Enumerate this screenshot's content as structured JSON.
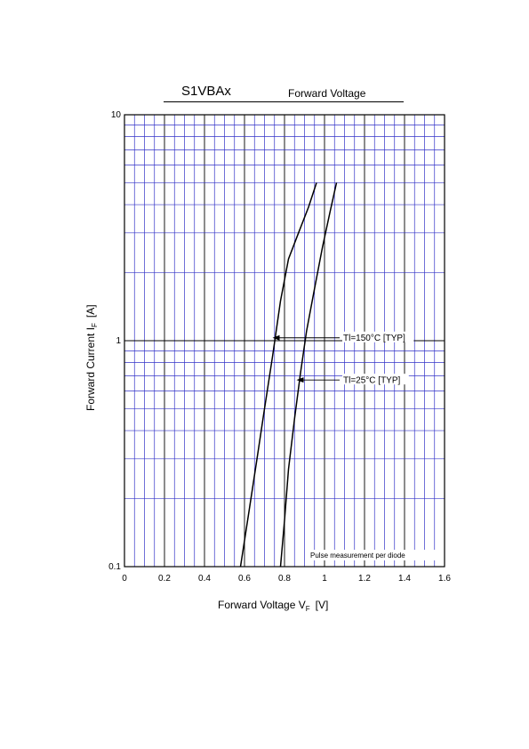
{
  "chart_data": {
    "type": "line",
    "title": "S1VBAx",
    "subtitle": "Forward Voltage",
    "xlabel": {
      "main": "Forward Voltage  V",
      "sub": "F",
      "unit": "[V]"
    },
    "ylabel": {
      "main": "Forward Current  I",
      "sub": "F",
      "unit": "[A]"
    },
    "xlim": [
      0,
      1.6
    ],
    "ylim": [
      0.1,
      10
    ],
    "yscale": "log",
    "xticks": [
      0,
      0.2,
      0.4,
      0.6,
      0.8,
      1.0,
      1.2,
      1.4,
      1.6
    ],
    "xtick_labels": [
      "0",
      "0.2",
      "0.4",
      "0.6",
      "0.8",
      "1",
      "1.2",
      "1.4",
      "1.6"
    ],
    "yticks": [
      0.1,
      1,
      10
    ],
    "ytick_labels": [
      "0.1",
      "1",
      "10"
    ],
    "grid": true,
    "note": "Pulse measurement per diode",
    "series": [
      {
        "name": "Tl=150°C [TYP]",
        "x": [
          0.58,
          0.62,
          0.66,
          0.7,
          0.74,
          0.78,
          0.82,
          0.87,
          0.92,
          0.96
        ],
        "y": [
          0.1,
          0.17,
          0.29,
          0.5,
          0.85,
          1.5,
          2.3,
          3.0,
          3.9,
          5.0
        ]
      },
      {
        "name": "Tl=25°C [TYP]",
        "x": [
          0.78,
          0.8,
          0.82,
          0.85,
          0.88,
          0.91,
          0.95,
          0.99,
          1.03,
          1.06
        ],
        "y": [
          0.1,
          0.16,
          0.27,
          0.45,
          0.72,
          1.1,
          1.7,
          2.6,
          3.8,
          5.0
        ]
      }
    ],
    "annotations": [
      {
        "text": "Tl=150°C [TYP]",
        "target_x": 0.74,
        "target_y": 1.03
      },
      {
        "text": "Tl=25°C [TYP]",
        "target_x": 0.86,
        "target_y": 0.67
      }
    ]
  }
}
